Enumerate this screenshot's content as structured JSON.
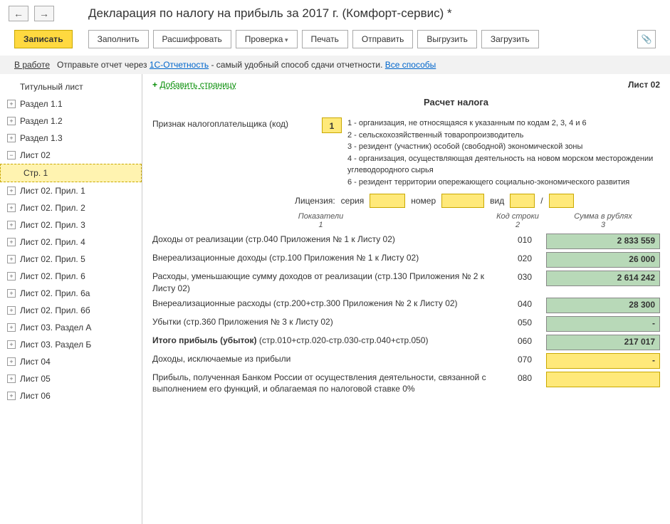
{
  "nav": {
    "back": "←",
    "fwd": "→"
  },
  "title": "Декларация по налогу на прибыль за 2017 г. (Комфорт-сервис) *",
  "toolbar": {
    "save": "Записать",
    "fill": "Заполнить",
    "decode": "Расшифровать",
    "check": "Проверка",
    "print": "Печать",
    "send": "Отправить",
    "export": "Выгрузить",
    "import": "Загрузить"
  },
  "status": {
    "state": "В работе",
    "prefix": "Отправьте отчет через ",
    "link1": "1С-Отчетность",
    "suffix": " - самый удобный способ сдачи отчетности. ",
    "link2": "Все способы"
  },
  "tree": [
    {
      "label": "Титульный лист",
      "icon": ""
    },
    {
      "label": "Раздел 1.1",
      "icon": "+"
    },
    {
      "label": "Раздел 1.2",
      "icon": "+"
    },
    {
      "label": "Раздел 1.3",
      "icon": "+"
    },
    {
      "label": "Лист 02",
      "icon": "−"
    },
    {
      "label": "Стр. 1",
      "child": true,
      "selected": true
    },
    {
      "label": "Лист 02. Прил. 1",
      "icon": "+"
    },
    {
      "label": "Лист 02. Прил. 2",
      "icon": "+"
    },
    {
      "label": "Лист 02. Прил. 3",
      "icon": "+"
    },
    {
      "label": "Лист 02. Прил. 4",
      "icon": "+"
    },
    {
      "label": "Лист 02. Прил. 5",
      "icon": "+"
    },
    {
      "label": "Лист 02. Прил. 6",
      "icon": "+"
    },
    {
      "label": "Лист 02. Прил. 6а",
      "icon": "+"
    },
    {
      "label": "Лист 02. Прил. 6б",
      "icon": "+"
    },
    {
      "label": "Лист 03. Раздел А",
      "icon": "+"
    },
    {
      "label": "Лист 03. Раздел Б",
      "icon": "+"
    },
    {
      "label": "Лист 04",
      "icon": "+"
    },
    {
      "label": "Лист 05",
      "icon": "+"
    },
    {
      "label": "Лист 06",
      "icon": "+"
    }
  ],
  "content": {
    "add_page": "Добавить страницу",
    "sheet": "Лист 02",
    "section_title": "Расчет налога",
    "taxpayer_label": "Признак налогоплательщика (код)",
    "taxpayer_code": "1",
    "legend": {
      "l1": "1 - организация, не относящаяся к указанным по кодам 2, 3, 4 и 6",
      "l2": "2 - сельскохозяйственный товаропроизводитель",
      "l3": "3 - резидент (участник) особой (свободной) экономической зоны",
      "l4": "4 - организация, осуществляющая деятельность на новом морском месторождении углеводородного сырья",
      "l6": "6 - резидент территории опережающего социально-экономического развития"
    },
    "license": {
      "label": "Лицензия:",
      "series": "серия",
      "number": "номер",
      "type": "вид",
      "slash": "/"
    },
    "headers": {
      "c1a": "Показатели",
      "c1b": "1",
      "c2a": "Код строки",
      "c2b": "2",
      "c3a": "Сумма в рублях",
      "c3b": "3"
    },
    "rows": [
      {
        "label": "Доходы от реализации (стр.040 Приложения № 1 к Листу 02)",
        "code": "010",
        "value": "2 833 559",
        "color": "green"
      },
      {
        "label": "Внереализационные доходы (стр.100 Приложения № 1 к Листу 02)",
        "code": "020",
        "value": "26 000",
        "color": "green"
      },
      {
        "label": "Расходы, уменьшающие сумму доходов от реализации (стр.130 Приложения № 2 к Листу 02)",
        "code": "030",
        "value": "2 614 242",
        "color": "green"
      },
      {
        "label": "Внереализационные расходы (стр.200+стр.300 Приложения № 2 к Листу 02)",
        "code": "040",
        "value": "28 300",
        "color": "green"
      },
      {
        "label": "Убытки (стр.360 Приложения № 3 к Листу 02)",
        "code": "050",
        "value": "-",
        "color": "green"
      },
      {
        "label_bold": "Итого прибыль (убыток)",
        "label_rest": "    (стр.010+стр.020-стр.030-стр.040+стр.050)",
        "code": "060",
        "value": "217 017",
        "color": "green"
      },
      {
        "label": "Доходы, исключаемые из прибыли",
        "code": "070",
        "value": "-",
        "color": "yellow"
      },
      {
        "label": "Прибыль, полученная Банком России от осуществления деятельности, связанной с выполнением его функций, и облагаемая по налоговой ставке 0%",
        "code": "080",
        "value": "",
        "color": "yellow"
      }
    ]
  }
}
